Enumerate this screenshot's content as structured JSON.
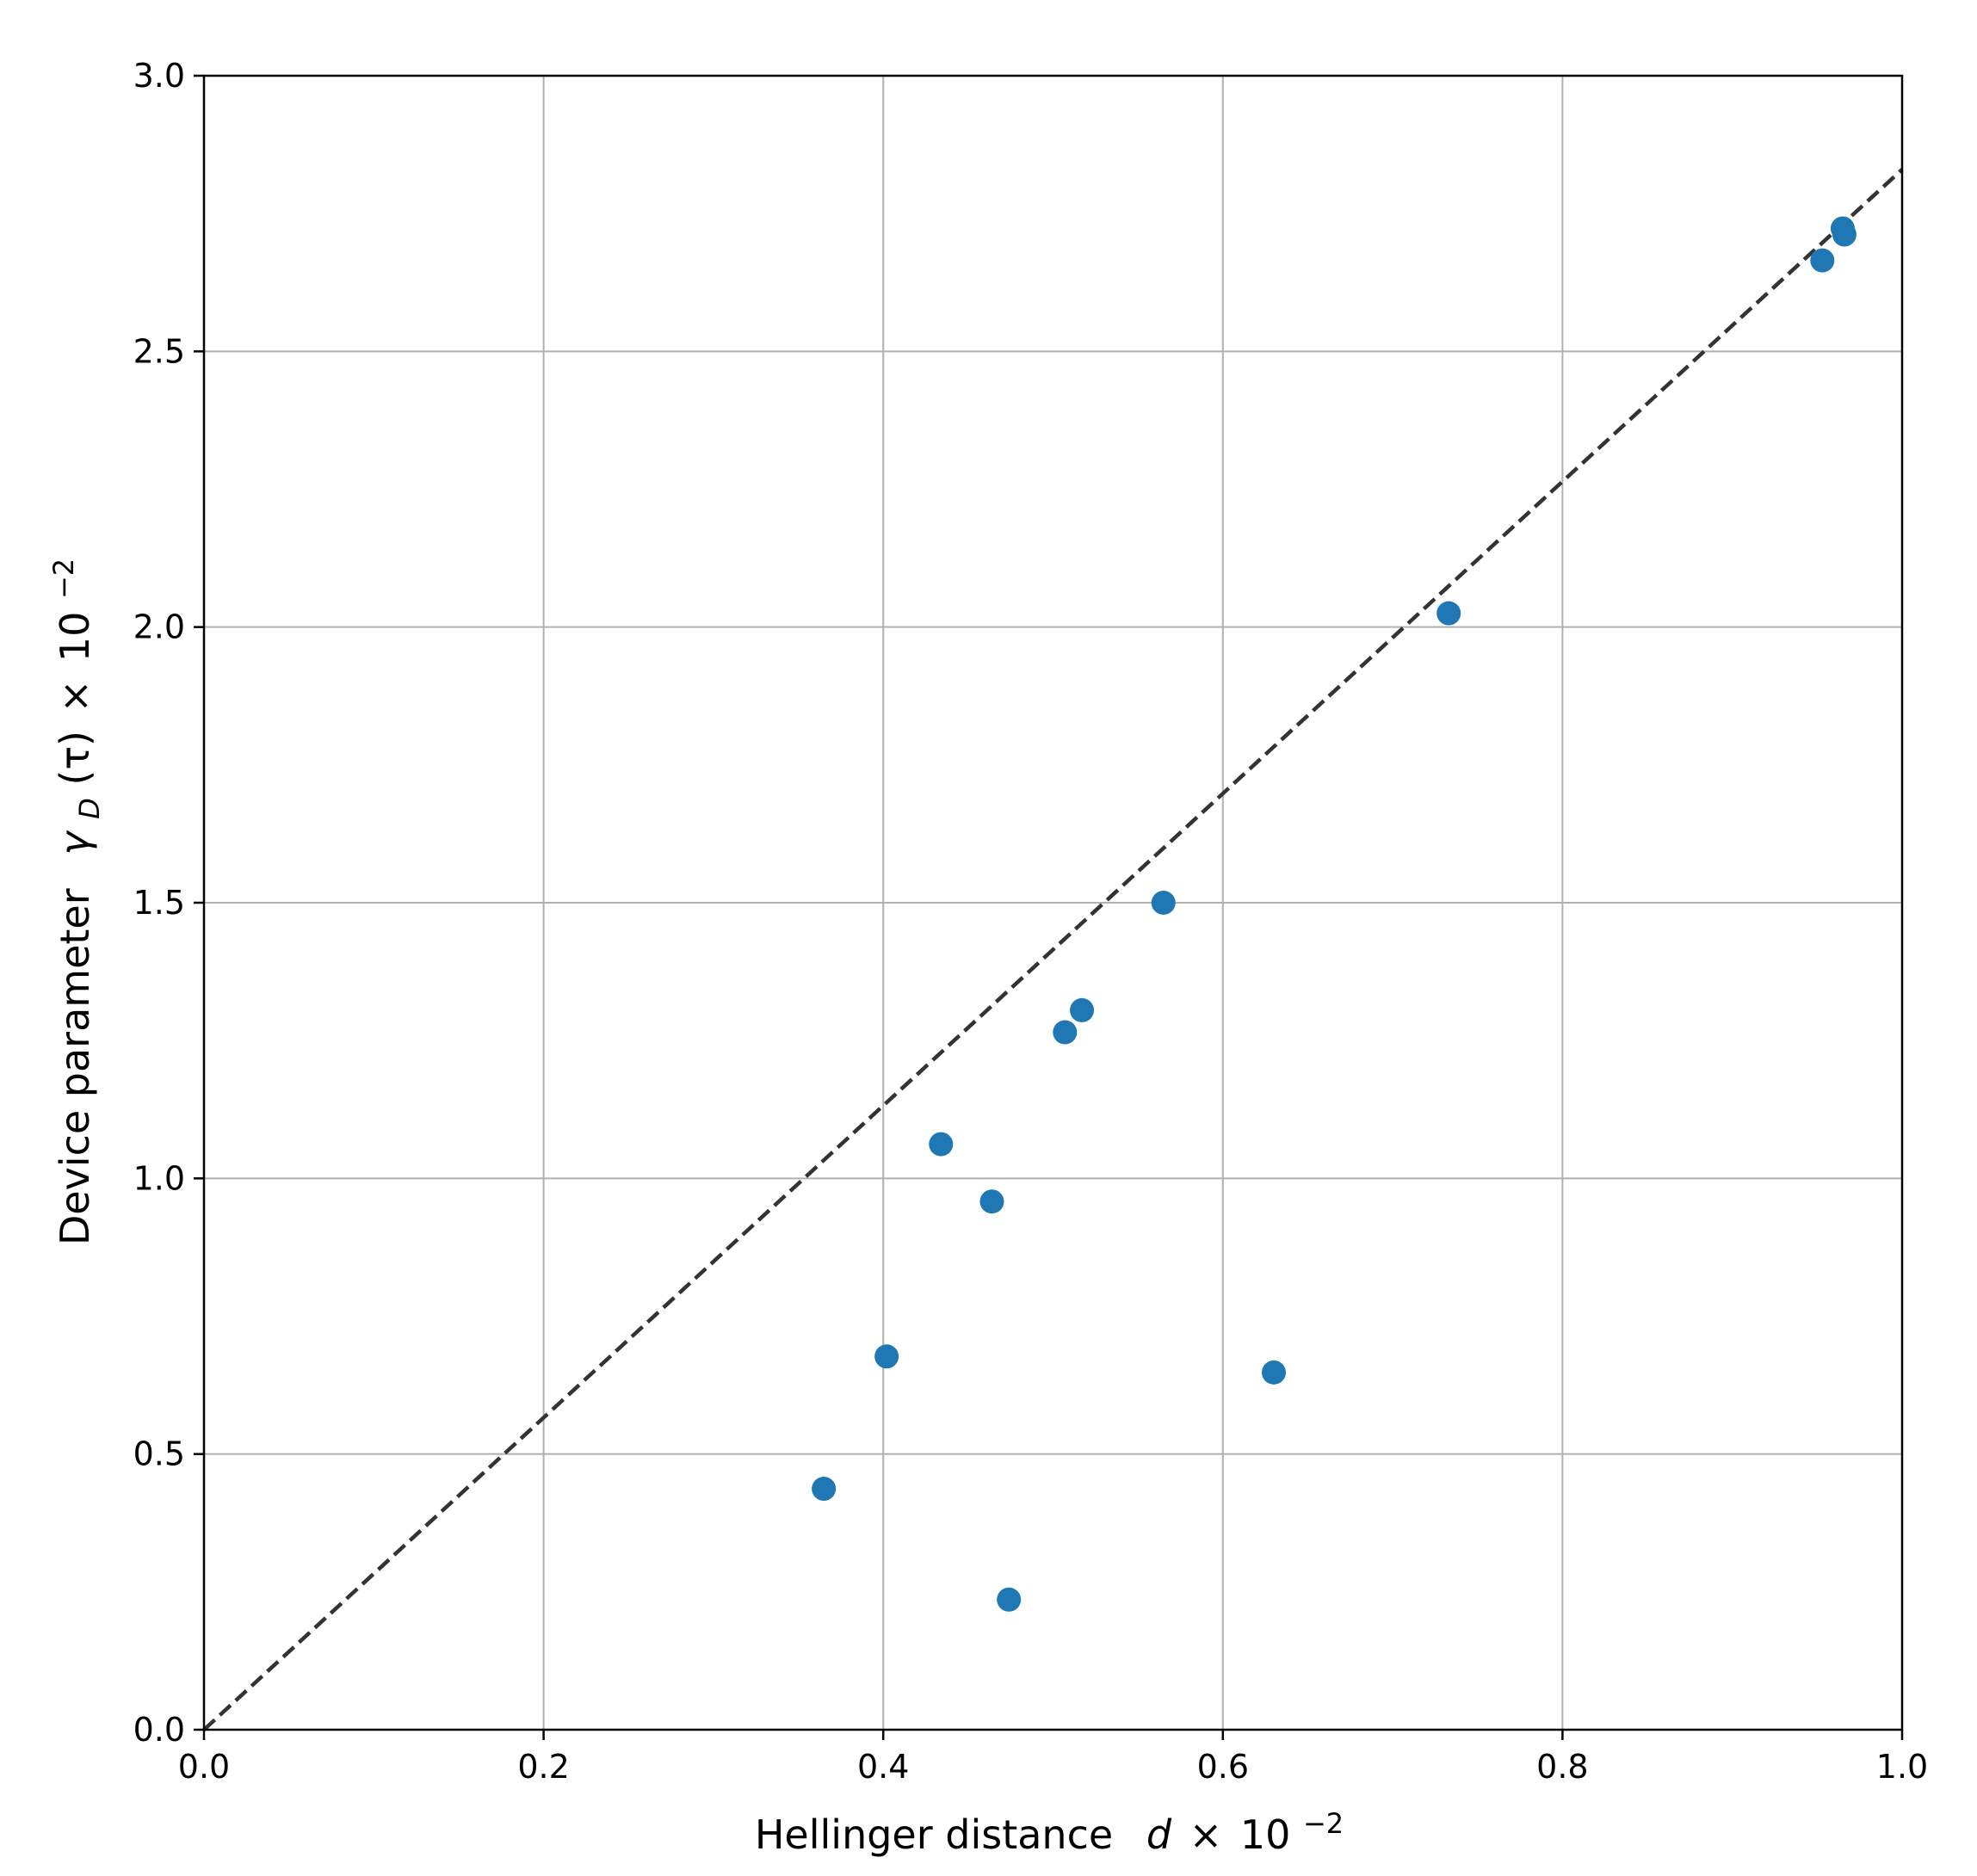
{
  "chart_data": {
    "type": "scatter",
    "xlim": [
      0.0,
      1.0
    ],
    "ylim": [
      0.0,
      3.0
    ],
    "x_ticks": [
      "0.0",
      "0.2",
      "0.4",
      "0.6",
      "0.8",
      "1.0"
    ],
    "y_ticks": [
      "0.0",
      "0.5",
      "1.0",
      "1.5",
      "2.0",
      "2.5",
      "3.0"
    ],
    "xlabel": {
      "prefix": "Hellinger distance",
      "symbol": "d",
      "times": "×",
      "base": "10",
      "exponent": "−2"
    },
    "ylabel": {
      "prefix": "Device parameter",
      "symbol": "γ",
      "symbol_sub": "D",
      "argument": "(τ)",
      "times": "×",
      "base": "10",
      "exponent": "−2"
    },
    "grid": true,
    "points": [
      {
        "x": 0.365,
        "y": 0.437
      },
      {
        "x": 0.402,
        "y": 0.677
      },
      {
        "x": 0.434,
        "y": 1.062
      },
      {
        "x": 0.464,
        "y": 0.958
      },
      {
        "x": 0.474,
        "y": 0.236
      },
      {
        "x": 0.507,
        "y": 1.265
      },
      {
        "x": 0.517,
        "y": 1.305
      },
      {
        "x": 0.565,
        "y": 1.5
      },
      {
        "x": 0.63,
        "y": 0.648
      },
      {
        "x": 0.733,
        "y": 2.025
      },
      {
        "x": 0.953,
        "y": 2.665
      },
      {
        "x": 0.965,
        "y": 2.723
      },
      {
        "x": 0.966,
        "y": 2.712
      }
    ],
    "reference_line": {
      "slope": 2.83,
      "intercept": 0.0,
      "style": "dashed"
    },
    "colors": {
      "marker": "#1f77b4",
      "grid": "#b0b0b0",
      "reference_line": "#333333",
      "axes": "#000000"
    }
  }
}
